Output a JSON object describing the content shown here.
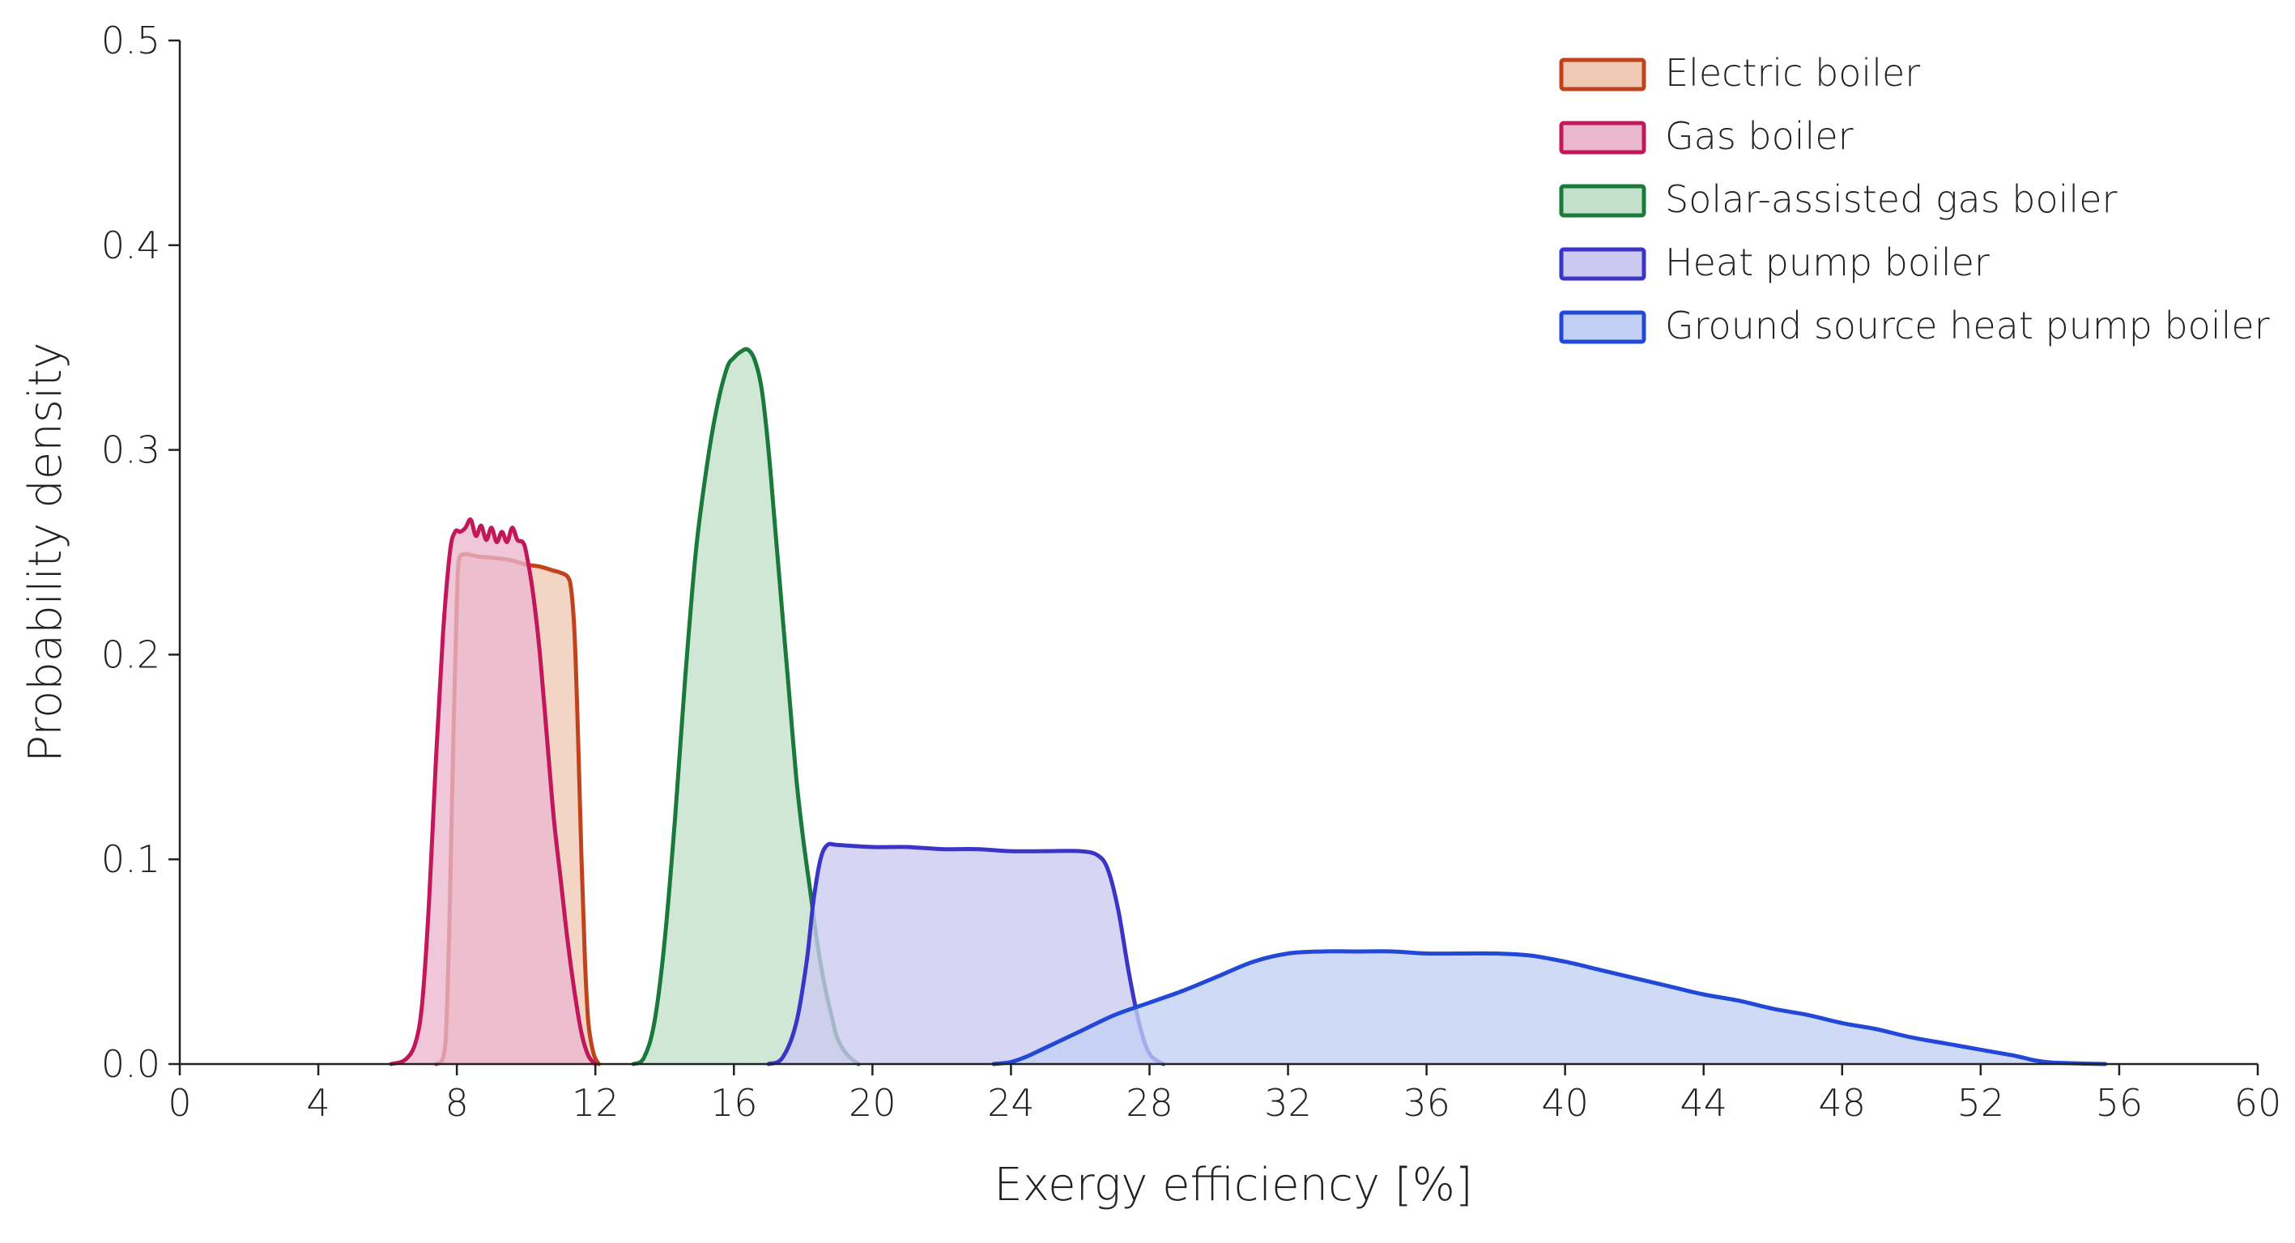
{
  "chart_data": {
    "type": "area",
    "title": "",
    "xlabel": "Exergy efficiency [%]",
    "ylabel": "Probability density",
    "xlim": [
      0,
      60
    ],
    "ylim": [
      0,
      0.5
    ],
    "xticks": [
      "0",
      "4",
      "8",
      "12",
      "16",
      "20",
      "24",
      "28",
      "32",
      "36",
      "40",
      "44",
      "48",
      "52",
      "56",
      "60"
    ],
    "yticks": [
      "0.0",
      "0.1",
      "0.2",
      "0.3",
      "0.4",
      "0.5"
    ],
    "grid": false,
    "legend_position": "top-right",
    "series": [
      {
        "name": "Electric boiler",
        "color": "#c0431e",
        "fill": "#efc9b6",
        "points": [
          [
            7.4,
            0
          ],
          [
            7.6,
            0.003
          ],
          [
            7.7,
            0.02
          ],
          [
            7.8,
            0.08
          ],
          [
            7.9,
            0.16
          ],
          [
            8.0,
            0.225
          ],
          [
            8.05,
            0.245
          ],
          [
            8.2,
            0.249
          ],
          [
            8.6,
            0.248
          ],
          [
            9.2,
            0.247
          ],
          [
            9.6,
            0.246
          ],
          [
            10.0,
            0.244
          ],
          [
            10.4,
            0.243
          ],
          [
            10.8,
            0.241
          ],
          [
            11.0,
            0.24
          ],
          [
            11.2,
            0.238
          ],
          [
            11.3,
            0.232
          ],
          [
            11.4,
            0.21
          ],
          [
            11.5,
            0.16
          ],
          [
            11.6,
            0.1
          ],
          [
            11.7,
            0.05
          ],
          [
            11.8,
            0.02
          ],
          [
            11.95,
            0.005
          ],
          [
            12.1,
            0
          ]
        ]
      },
      {
        "name": "Gas boiler",
        "color": "#c2185b",
        "fill": "#eab7ce",
        "points": [
          [
            6.1,
            0
          ],
          [
            6.5,
            0.002
          ],
          [
            6.8,
            0.01
          ],
          [
            7.0,
            0.03
          ],
          [
            7.2,
            0.08
          ],
          [
            7.4,
            0.15
          ],
          [
            7.6,
            0.21
          ],
          [
            7.8,
            0.25
          ],
          [
            7.95,
            0.26
          ],
          [
            8.1,
            0.26
          ],
          [
            8.25,
            0.262
          ],
          [
            8.4,
            0.266
          ],
          [
            8.55,
            0.258
          ],
          [
            8.7,
            0.263
          ],
          [
            8.85,
            0.256
          ],
          [
            9.0,
            0.262
          ],
          [
            9.15,
            0.255
          ],
          [
            9.3,
            0.26
          ],
          [
            9.45,
            0.255
          ],
          [
            9.6,
            0.262
          ],
          [
            9.75,
            0.256
          ],
          [
            9.9,
            0.255
          ],
          [
            10.0,
            0.25
          ],
          [
            10.2,
            0.23
          ],
          [
            10.4,
            0.2
          ],
          [
            10.6,
            0.16
          ],
          [
            10.8,
            0.12
          ],
          [
            11.0,
            0.09
          ],
          [
            11.2,
            0.06
          ],
          [
            11.4,
            0.035
          ],
          [
            11.6,
            0.015
          ],
          [
            11.8,
            0.004
          ],
          [
            12.0,
            0
          ]
        ]
      },
      {
        "name": "Solar-assisted gas boiler",
        "color": "#1a7a3c",
        "fill": "#c3e0cb",
        "points": [
          [
            13.1,
            0
          ],
          [
            13.4,
            0.003
          ],
          [
            13.7,
            0.02
          ],
          [
            14.0,
            0.06
          ],
          [
            14.3,
            0.12
          ],
          [
            14.6,
            0.19
          ],
          [
            14.9,
            0.25
          ],
          [
            15.2,
            0.29
          ],
          [
            15.5,
            0.32
          ],
          [
            15.8,
            0.34
          ],
          [
            16.0,
            0.345
          ],
          [
            16.2,
            0.348
          ],
          [
            16.4,
            0.349
          ],
          [
            16.6,
            0.344
          ],
          [
            16.8,
            0.33
          ],
          [
            17.0,
            0.3
          ],
          [
            17.2,
            0.26
          ],
          [
            17.4,
            0.22
          ],
          [
            17.6,
            0.18
          ],
          [
            17.8,
            0.14
          ],
          [
            18.0,
            0.11
          ],
          [
            18.2,
            0.085
          ],
          [
            18.4,
            0.06
          ],
          [
            18.6,
            0.04
          ],
          [
            18.8,
            0.025
          ],
          [
            19.0,
            0.012
          ],
          [
            19.3,
            0.004
          ],
          [
            19.6,
            0
          ]
        ]
      },
      {
        "name": "Heat pump boiler",
        "color": "#3b35c7",
        "fill": "#cbc9ef",
        "points": [
          [
            17.0,
            0
          ],
          [
            17.4,
            0.003
          ],
          [
            17.8,
            0.02
          ],
          [
            18.1,
            0.05
          ],
          [
            18.3,
            0.08
          ],
          [
            18.5,
            0.1
          ],
          [
            18.7,
            0.107
          ],
          [
            19.0,
            0.107
          ],
          [
            20.0,
            0.106
          ],
          [
            21.0,
            0.106
          ],
          [
            22.0,
            0.105
          ],
          [
            23.0,
            0.105
          ],
          [
            24.0,
            0.104
          ],
          [
            25.0,
            0.104
          ],
          [
            26.0,
            0.104
          ],
          [
            26.5,
            0.102
          ],
          [
            26.8,
            0.095
          ],
          [
            27.1,
            0.075
          ],
          [
            27.4,
            0.045
          ],
          [
            27.7,
            0.02
          ],
          [
            28.0,
            0.005
          ],
          [
            28.4,
            0
          ]
        ]
      },
      {
        "name": "Ground source heat pump boiler",
        "color": "#2148d6",
        "fill": "#c2cff4",
        "points": [
          [
            23.5,
            0
          ],
          [
            24.0,
            0.001
          ],
          [
            24.5,
            0.004
          ],
          [
            25.0,
            0.008
          ],
          [
            26.0,
            0.016
          ],
          [
            27.0,
            0.024
          ],
          [
            28.0,
            0.03
          ],
          [
            29.0,
            0.036
          ],
          [
            30.0,
            0.043
          ],
          [
            31.0,
            0.05
          ],
          [
            32.0,
            0.054
          ],
          [
            33.0,
            0.055
          ],
          [
            34.0,
            0.055
          ],
          [
            35.0,
            0.055
          ],
          [
            36.0,
            0.054
          ],
          [
            37.0,
            0.054
          ],
          [
            38.0,
            0.054
          ],
          [
            39.0,
            0.053
          ],
          [
            40.0,
            0.05
          ],
          [
            41.0,
            0.046
          ],
          [
            42.0,
            0.042
          ],
          [
            43.0,
            0.038
          ],
          [
            44.0,
            0.034
          ],
          [
            45.0,
            0.031
          ],
          [
            46.0,
            0.027
          ],
          [
            47.0,
            0.024
          ],
          [
            48.0,
            0.02
          ],
          [
            49.0,
            0.017
          ],
          [
            50.0,
            0.013
          ],
          [
            51.0,
            0.01
          ],
          [
            52.0,
            0.007
          ],
          [
            53.0,
            0.004
          ],
          [
            53.5,
            0.002
          ],
          [
            54.0,
            0.0008
          ],
          [
            55.0,
            0.0002
          ],
          [
            55.6,
            0
          ]
        ]
      }
    ]
  }
}
